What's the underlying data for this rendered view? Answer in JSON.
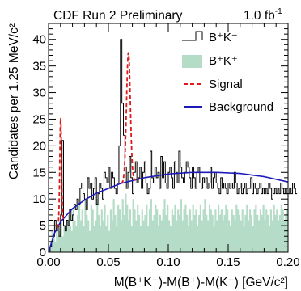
{
  "chart_data": {
    "type": "histogram",
    "title": {
      "experiment": "CDF Run 2 Preliminary",
      "luminosity": "1.0 fb",
      "luminosity_exp": "-1"
    },
    "xlabel": "M(B⁺K⁻)-M(B⁺)-M(K⁻) [GeV/c²]",
    "ylabel": "Candidates per 1.25 MeV/c²",
    "xlim": [
      0,
      0.2
    ],
    "ylim": [
      0,
      43
    ],
    "x_ticks": [
      "0.00",
      "0.05",
      "0.10",
      "0.15",
      "0.20"
    ],
    "y_ticks": [
      "0",
      "5",
      "10",
      "15",
      "20",
      "25",
      "30",
      "35",
      "40"
    ],
    "bin_width": 0.00125,
    "x_start": 0.0,
    "legend": {
      "position": "top-right",
      "entries": [
        {
          "label": "B⁺K⁻",
          "style": "line-histogram",
          "color": "#000000"
        },
        {
          "label": "B⁺K⁺",
          "style": "filled",
          "color": "#b4dcc6"
        },
        {
          "label": "Signal",
          "style": "dashed-line",
          "color": "#e0191b"
        },
        {
          "label": "Background",
          "style": "solid-line",
          "color": "#1c1ab8"
        }
      ]
    },
    "series": [
      {
        "name": "B⁺K⁻",
        "kind": "opposite-sign data",
        "values": [
          0,
          1,
          2,
          3,
          6,
          4,
          5,
          3,
          7,
          21,
          5,
          4,
          6,
          5,
          8,
          6,
          7,
          9,
          8,
          10,
          9,
          12,
          13,
          11,
          10,
          8,
          14,
          12,
          13,
          10,
          12,
          14,
          9,
          11,
          13,
          12,
          10,
          15,
          14,
          13,
          16,
          12,
          15,
          14,
          12,
          11,
          13,
          20,
          40,
          28,
          22,
          16,
          12,
          15,
          18,
          14,
          11,
          15,
          17,
          13,
          14,
          16,
          12,
          15,
          17,
          13,
          11,
          12,
          19,
          14,
          13,
          16,
          14,
          15,
          12,
          18,
          14,
          17,
          13,
          12,
          15,
          16,
          14,
          12,
          17,
          15,
          13,
          19,
          16,
          14,
          13,
          15,
          17,
          16,
          14,
          12,
          16,
          14,
          12,
          15,
          16,
          13,
          12,
          14,
          13,
          14,
          12,
          13,
          16,
          12,
          14,
          15,
          13,
          12,
          11,
          14,
          12,
          13,
          12,
          11,
          13,
          12,
          13,
          12,
          15,
          13,
          11,
          12,
          13,
          11,
          12,
          13,
          11,
          12,
          12,
          14,
          11,
          13,
          12,
          11,
          12,
          13,
          11,
          12,
          11,
          12,
          11,
          13,
          12,
          10,
          11,
          12,
          11,
          12,
          11,
          13,
          12,
          11,
          12,
          11,
          11,
          12,
          11,
          13,
          12,
          11
        ]
      },
      {
        "name": "B⁺K⁺",
        "kind": "same-sign data",
        "values": [
          1,
          2,
          4,
          3,
          2,
          5,
          3,
          4,
          6,
          3,
          5,
          4,
          6,
          7,
          5,
          4,
          8,
          6,
          5,
          7,
          9,
          6,
          8,
          5,
          10,
          7,
          6,
          4,
          9,
          8,
          5,
          6,
          10,
          7,
          5,
          8,
          6,
          9,
          5,
          7,
          4,
          8,
          6,
          10,
          7,
          5,
          9,
          8,
          6,
          10,
          7,
          11,
          9,
          6,
          8,
          5,
          10,
          8,
          6,
          9,
          7,
          5,
          8,
          6,
          7,
          9,
          5,
          8,
          10,
          6,
          7,
          9,
          8,
          5,
          7,
          6,
          8,
          10,
          7,
          9,
          6,
          5,
          8,
          7,
          9,
          6,
          8,
          7,
          10,
          6,
          8,
          9,
          7,
          5,
          8,
          6,
          9,
          7,
          8,
          5,
          7,
          9,
          6,
          8,
          10,
          7,
          6,
          9,
          8,
          7,
          5,
          8,
          6,
          9,
          7,
          8,
          6,
          7,
          9,
          8,
          6,
          5,
          8,
          7,
          6,
          9,
          8,
          7,
          6,
          8,
          5,
          7,
          9,
          6,
          8,
          7,
          5,
          8,
          9,
          7,
          6,
          8,
          7,
          9,
          6,
          8,
          7,
          5,
          8,
          6,
          9,
          7,
          8,
          6,
          7,
          9,
          8,
          6,
          7,
          8
        ]
      }
    ],
    "signal_peaks": [
      {
        "mean": 0.0101,
        "sigma": 0.00072,
        "amplitude": 19.5
      },
      {
        "mean": 0.0667,
        "sigma": 0.0016,
        "amplitude": 24.3
      }
    ],
    "background_curve": {
      "x": [
        0.0,
        0.005,
        0.01,
        0.02,
        0.03,
        0.04,
        0.06,
        0.08,
        0.1,
        0.12,
        0.14,
        0.16,
        0.18,
        0.2
      ],
      "y": [
        0.0,
        3.6,
        5.7,
        8.2,
        9.8,
        11.1,
        12.9,
        14.0,
        14.7,
        15.0,
        15.0,
        14.8,
        14.2,
        13.2
      ]
    }
  }
}
